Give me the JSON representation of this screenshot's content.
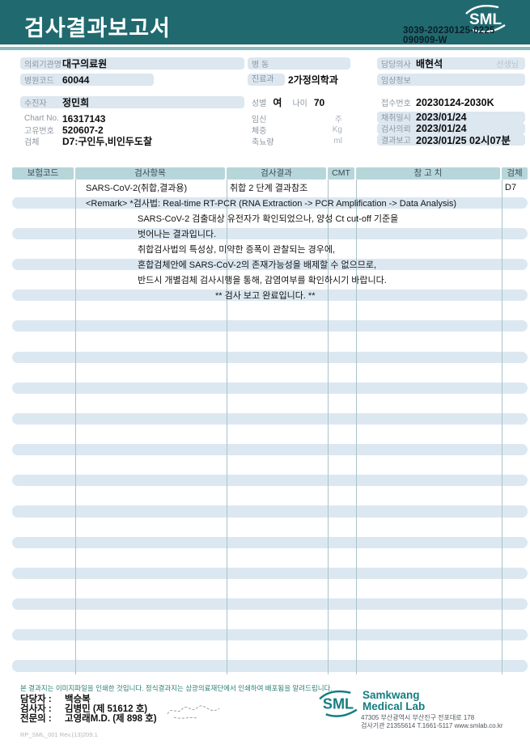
{
  "header": {
    "title": "검사결과보고서",
    "logo_text": "SML",
    "report_no_line1": "3039-20230125-0225",
    "report_no_line2": "090909-W"
  },
  "info": {
    "org": {
      "label": "의뢰기관명",
      "value": "대구의료원"
    },
    "hosp_code": {
      "label": "병원코드",
      "value": "60044"
    },
    "patient": {
      "label": "수진자",
      "value": "정민희"
    },
    "chart_no": {
      "label": "Chart No.",
      "value": "16317143"
    },
    "unique_no": {
      "label": "고유번호",
      "value": "520607-2"
    },
    "specimen": {
      "label": "검체",
      "value": "D7:구인두,비인두도찰"
    },
    "ward": {
      "label": "병  동",
      "value": ""
    },
    "dept": {
      "label": "진료과",
      "value": "2가정의학과"
    },
    "sex": {
      "label": "성별",
      "value": "여"
    },
    "age": {
      "label": "나이",
      "value": "70"
    },
    "pregnancy": {
      "label": "임신",
      "unit": "주"
    },
    "weight": {
      "label": "체중",
      "unit": "Kg"
    },
    "urine": {
      "label": "축뇨량",
      "unit": "ml"
    },
    "doctor": {
      "label": "담당의사",
      "value": "배현석",
      "suffix": "선생님"
    },
    "clinical": {
      "label": "임상정보",
      "value": ""
    },
    "receipt_no": {
      "label": "접수번호",
      "value": "20230124-2030K"
    },
    "collected": {
      "label": "채취일시",
      "value": "2023/01/24"
    },
    "requested": {
      "label": "검사의뢰",
      "value": "2023/01/24"
    },
    "reported": {
      "label": "결과보고",
      "value": "2023/01/25 02시07분"
    }
  },
  "table": {
    "headers": [
      "보험코드",
      "검사항목",
      "검사결과",
      "CMT",
      "참 고 치",
      "검체"
    ],
    "result_row": {
      "code": "",
      "item": "SARS-CoV-2(취합,결과용)",
      "result": "취합 2 단계 결과참조",
      "cmt": "",
      "ref": "",
      "spec": "D7"
    },
    "remark_lines": [
      {
        "text": "<Remark> *검사법: Real-time RT-PCR (RNA Extraction -> PCR Amplification -> Data Analysis)",
        "indent": 0
      },
      {
        "text": "SARS-CoV-2 검출대상 유전자가 확인되었으나, 양성 Ct cut-off 기준을",
        "indent": 1
      },
      {
        "text": "벗어나는 결과입니다.",
        "indent": 1
      },
      {
        "text": "취합검사법의 특성상, 미약한 증폭이 관찰되는 경우에,",
        "indent": 1
      },
      {
        "text": "혼합검체안에 SARS-CoV-2의 존재가능성을 배제할 수 없으므로,",
        "indent": 1
      },
      {
        "text": "반드시 개별검체 검사시행을 통해, 감염여부를 확인하시기 바랍니다.",
        "indent": 1
      },
      {
        "text": "** 검사 보고 완료입니다. **",
        "indent": 2
      }
    ],
    "empty_row_count": 24
  },
  "footer": {
    "notice": "본 결과지는 이미지파일을 인쇄한 것입니다. 정식결과지는 삼광의료재단에서 인쇄하여 배포됨을 알려드립니다.",
    "staff": [
      {
        "role": "담당자 :",
        "name": "백승복"
      },
      {
        "role": "검사자 :",
        "name": "김병민 (제 51612 호)"
      },
      {
        "role": "전문의 :",
        "name": "고영래M.D. (제 898 호)"
      }
    ],
    "logo_text": "SML",
    "lab_name_line1": "Samkwang",
    "lab_name_line2": "Medical Lab",
    "address": "47305 부산광역시 부산진구 전포대로 178",
    "contact": "검사기관 21355614 T.1661-5117 www.smlab.co.kr",
    "doc_code": "RP_SML_001 Rev.(13)209.1"
  },
  "colors": {
    "banner_teal": "#206a6f",
    "strip_teal": "#8fb9bc",
    "table_header": "#b7d6da",
    "row_highlight": "#dce8f1",
    "label_pill": "#dce7f0",
    "footer_teal": "#2b7f74",
    "logo_teal": "#157d80",
    "tracking_text": "#0c1e2a"
  }
}
